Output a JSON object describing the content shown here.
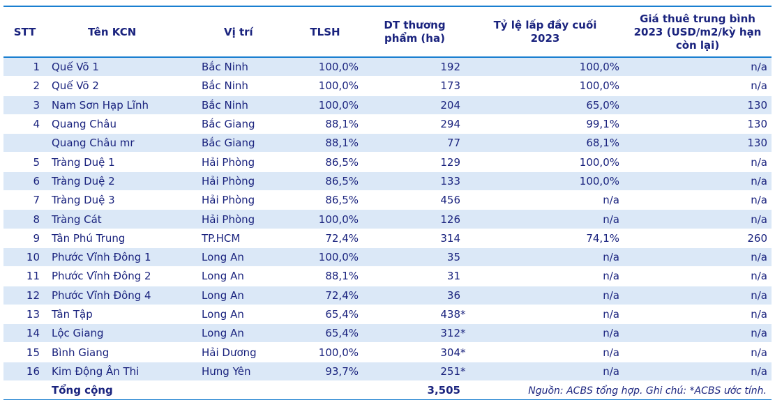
{
  "headers": {
    "stt": "STT",
    "name": "Tên KCN",
    "location": "Vị trí",
    "tlsh": "TLSH",
    "area": "DT thương phẩm (ha)",
    "fill": "Tỷ lệ lấp đầy cuối 2023",
    "price": "Giá thuê trung bình 2023 (USD/m2/kỳ hạn còn lại)"
  },
  "rows": [
    {
      "stt": "1",
      "name": "Quế Võ 1",
      "location": "Bắc Ninh",
      "tlsh": "100,0%",
      "area": "192",
      "star": "",
      "fill": "100,0%",
      "price": "n/a"
    },
    {
      "stt": "2",
      "name": "Quế Võ 2",
      "location": "Bắc Ninh",
      "tlsh": "100,0%",
      "area": "173",
      "star": "",
      "fill": "100,0%",
      "price": "n/a"
    },
    {
      "stt": "3",
      "name": "Nam Sơn Hạp Lĩnh",
      "location": "Bắc Ninh",
      "tlsh": "100,0%",
      "area": "204",
      "star": "",
      "fill": "65,0%",
      "price": "130"
    },
    {
      "stt": "4",
      "name": "Quang Châu",
      "location": "Bắc Giang",
      "tlsh": "88,1%",
      "area": "294",
      "star": "",
      "fill": "99,1%",
      "price": "130"
    },
    {
      "stt": "",
      "name": "Quang Châu mr",
      "location": "Bắc Giang",
      "tlsh": "88,1%",
      "area": "77",
      "star": "",
      "fill": "68,1%",
      "price": "130"
    },
    {
      "stt": "5",
      "name": "Tràng Duệ 1",
      "location": "Hải Phòng",
      "tlsh": "86,5%",
      "area": "129",
      "star": "",
      "fill": "100,0%",
      "price": "n/a"
    },
    {
      "stt": "6",
      "name": "Tràng Duệ 2",
      "location": "Hải Phòng",
      "tlsh": "86,5%",
      "area": "133",
      "star": "",
      "fill": "100,0%",
      "price": "n/a"
    },
    {
      "stt": "7",
      "name": "Tràng Duệ 3",
      "location": "Hải Phòng",
      "tlsh": "86,5%",
      "area": "456",
      "star": "",
      "fill": "n/a",
      "price": "n/a"
    },
    {
      "stt": "8",
      "name": "Tràng Cát",
      "location": "Hải Phòng",
      "tlsh": "100,0%",
      "area": "126",
      "star": "",
      "fill": "n/a",
      "price": "n/a"
    },
    {
      "stt": "9",
      "name": "Tân Phú Trung",
      "location": "TP.HCM",
      "tlsh": "72,4%",
      "area": "314",
      "star": "",
      "fill": "74,1%",
      "price": "260"
    },
    {
      "stt": "10",
      "name": "Phước Vĩnh Đông 1",
      "location": "Long An",
      "tlsh": "100,0%",
      "area": "35",
      "star": "",
      "fill": "n/a",
      "price": "n/a"
    },
    {
      "stt": "11",
      "name": "Phước Vĩnh Đông 2",
      "location": "Long An",
      "tlsh": "88,1%",
      "area": "31",
      "star": "",
      "fill": "n/a",
      "price": "n/a"
    },
    {
      "stt": "12",
      "name": "Phước Vĩnh Đông 4",
      "location": "Long An",
      "tlsh": "72,4%",
      "area": "36",
      "star": "",
      "fill": "n/a",
      "price": "n/a"
    },
    {
      "stt": "13",
      "name": "Tân Tập",
      "location": "Long An",
      "tlsh": "65,4%",
      "area": "438",
      "star": "*",
      "fill": "n/a",
      "price": "n/a"
    },
    {
      "stt": "14",
      "name": "Lộc Giang",
      "location": "Long An",
      "tlsh": "65,4%",
      "area": "312",
      "star": "*",
      "fill": "n/a",
      "price": "n/a"
    },
    {
      "stt": "15",
      "name": "Bình Giang",
      "location": "Hải Dương",
      "tlsh": "100,0%",
      "area": "304",
      "star": "*",
      "fill": "n/a",
      "price": "n/a"
    },
    {
      "stt": "16",
      "name": "Kim Động Ân Thi",
      "location": "Hưng Yên",
      "tlsh": "93,7%",
      "area": "251",
      "star": "*",
      "fill": "n/a",
      "price": "n/a"
    }
  ],
  "total": {
    "label": "Tổng cộng",
    "area": "3,505"
  },
  "note": "Nguồn: ACBS tổng hợp. Ghi chú: *ACBS ước tính."
}
